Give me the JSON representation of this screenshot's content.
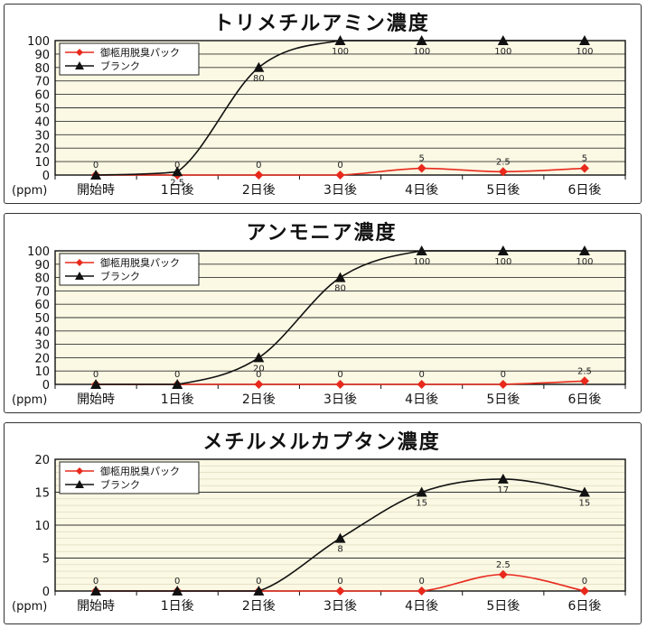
{
  "chart_data": [
    {
      "type": "line",
      "title": "トリメチルアミン濃度",
      "unit_label": "(ppm)",
      "categories": [
        "開始時",
        "1日後",
        "2日後",
        "3日後",
        "4日後",
        "5日後",
        "6日後"
      ],
      "ylim": [
        0,
        100
      ],
      "yticks": [
        0,
        10,
        20,
        30,
        40,
        50,
        60,
        70,
        80,
        90,
        100
      ],
      "yticklabels": [
        "0",
        "10",
        "20",
        "30",
        "40",
        "50",
        "60",
        "70",
        "80",
        "90",
        "100"
      ],
      "grid": true,
      "legend_position": "top-left",
      "series": [
        {
          "name": "御柩用脱臭パック",
          "color": "#e8291c",
          "marker": "diamond",
          "values": [
            0,
            0,
            0,
            0,
            5,
            2.5,
            5
          ],
          "labels": [
            "0",
            "0",
            "0",
            "0",
            "5",
            "2.5",
            "5"
          ]
        },
        {
          "name": "ブランク",
          "color": "#111111",
          "marker": "triangle",
          "values": [
            0,
            2.5,
            80,
            100,
            100,
            100,
            100
          ],
          "labels": [
            "",
            "2.5",
            "80",
            "100",
            "100",
            "100",
            "100"
          ]
        }
      ]
    },
    {
      "type": "line",
      "title": "アンモニア濃度",
      "unit_label": "(ppm)",
      "categories": [
        "開始時",
        "1日後",
        "2日後",
        "3日後",
        "4日後",
        "5日後",
        "6日後"
      ],
      "ylim": [
        0,
        100
      ],
      "yticks": [
        0,
        10,
        20,
        30,
        40,
        50,
        60,
        70,
        80,
        90,
        100
      ],
      "yticklabels": [
        "0",
        "10",
        "20",
        "30",
        "40",
        "50",
        "60",
        "70",
        "80",
        "90",
        "100"
      ],
      "grid": true,
      "legend_position": "top-left",
      "series": [
        {
          "name": "御柩用脱臭パック",
          "color": "#e8291c",
          "marker": "diamond",
          "values": [
            0,
            0,
            0,
            0,
            0,
            0,
            2.5
          ],
          "labels": [
            "0",
            "0",
            "0",
            "0",
            "0",
            "0",
            "2.5"
          ]
        },
        {
          "name": "ブランク",
          "color": "#111111",
          "marker": "triangle",
          "values": [
            0,
            0,
            20,
            80,
            100,
            100,
            100
          ],
          "labels": [
            "",
            "",
            "20",
            "80",
            "100",
            "100",
            "100"
          ]
        }
      ]
    },
    {
      "type": "line",
      "title": "メチルメルカプタン濃度",
      "unit_label": "(ppm)",
      "categories": [
        "開始時",
        "1日後",
        "2日後",
        "3日後",
        "4日後",
        "5日後",
        "6日後"
      ],
      "ylim": [
        0,
        20
      ],
      "yticks": [
        0,
        5,
        10,
        15,
        20
      ],
      "yticklabels": [
        "0",
        "5",
        "10",
        "15",
        "20"
      ],
      "grid": true,
      "legend_position": "top-left",
      "series": [
        {
          "name": "御柩用脱臭パック",
          "color": "#e8291c",
          "marker": "diamond",
          "values": [
            0,
            0,
            0,
            0,
            0,
            2.5,
            0
          ],
          "labels": [
            "0",
            "0",
            "0",
            "0",
            "0",
            "2.5",
            "0"
          ]
        },
        {
          "name": "ブランク",
          "color": "#111111",
          "marker": "triangle",
          "values": [
            0,
            0,
            0,
            8,
            15,
            17,
            15
          ],
          "labels": [
            "",
            "",
            "",
            "8",
            "15",
            "17",
            "15"
          ]
        }
      ]
    }
  ]
}
